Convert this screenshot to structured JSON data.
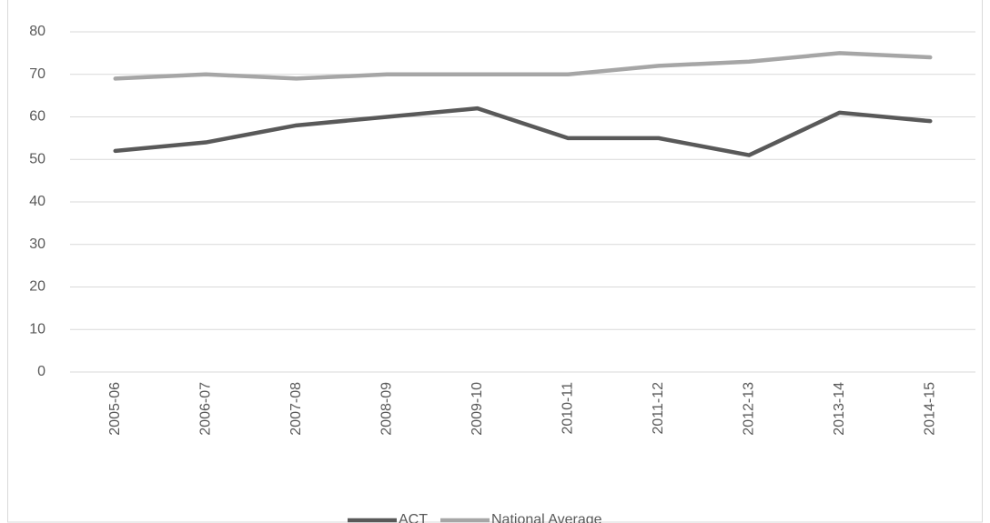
{
  "chart_data": {
    "type": "line",
    "categories": [
      "2005-06",
      "2006-07",
      "2007-08",
      "2008-09",
      "2009-10",
      "2010-11",
      "2011-12",
      "2012-13",
      "2013-14",
      "2014-15"
    ],
    "series": [
      {
        "name": "ACT",
        "color": "#595959",
        "values": [
          52,
          54,
          58,
          60,
          62,
          55,
          55,
          51,
          61,
          59
        ]
      },
      {
        "name": "National Average",
        "color": "#a6a6a6",
        "values": [
          69,
          70,
          69,
          70,
          70,
          70,
          72,
          73,
          75,
          74
        ]
      }
    ],
    "ylim": [
      0,
      80
    ],
    "yticks": [
      0,
      10,
      20,
      30,
      40,
      50,
      60,
      70,
      80
    ],
    "grid": true,
    "legend": "bottom"
  }
}
